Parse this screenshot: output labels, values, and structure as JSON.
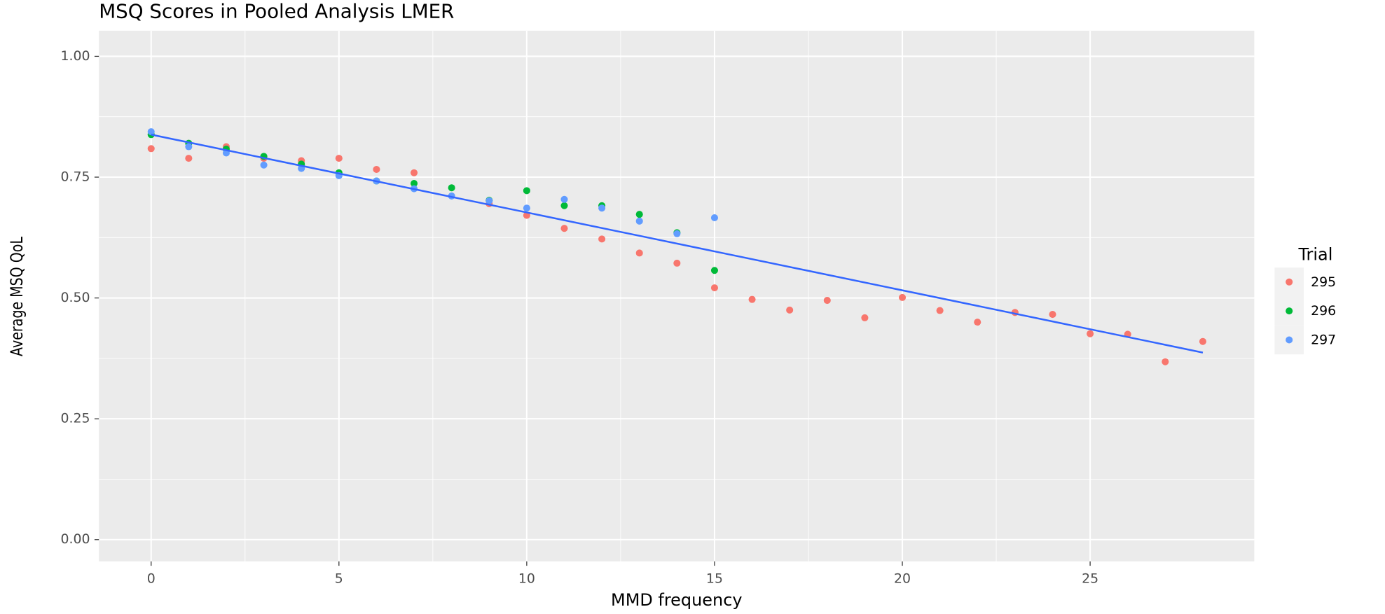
{
  "chart_data": {
    "type": "scatter",
    "title": "MSQ Scores in Pooled Analysis LMER",
    "x_label": "MMD frequency",
    "y_label": "Average MSQ QoL",
    "legend_title": "Trial",
    "legend": "right",
    "grid": true,
    "xlim": [
      -1.39,
      29.37
    ],
    "ylim": [
      -0.045,
      1.053
    ],
    "xticks": [
      0,
      5,
      10,
      15,
      20,
      25
    ],
    "yticks": [
      {
        "value": 0,
        "label": "0.00"
      },
      {
        "value": 0.25,
        "label": "0.25"
      },
      {
        "value": 0.5,
        "label": "0.50"
      },
      {
        "value": 0.75,
        "label": "0.75"
      },
      {
        "value": 1,
        "label": "1.00"
      }
    ],
    "series": [
      {
        "name": "295",
        "color": "#f8766d",
        "x": [
          0,
          1,
          2,
          3,
          4,
          5,
          6,
          7,
          9,
          10,
          11,
          12,
          13,
          14,
          15,
          16,
          17,
          18,
          19,
          20,
          21,
          22,
          23,
          24,
          25,
          26,
          27,
          28
        ],
        "values": [
          0.809,
          0.789,
          0.813,
          0.789,
          0.784,
          0.789,
          0.766,
          0.759,
          0.695,
          0.671,
          0.644,
          0.622,
          0.593,
          0.572,
          0.521,
          0.497,
          0.475,
          0.495,
          0.459,
          0.501,
          0.474,
          0.45,
          0.47,
          0.466,
          0.426,
          0.425,
          0.368,
          0.41
        ]
      },
      {
        "name": "296",
        "color": "#00ba38",
        "x": [
          0,
          1,
          2,
          3,
          4,
          5,
          6,
          7,
          8,
          9,
          10,
          11,
          12,
          13,
          14,
          15
        ],
        "values": [
          0.838,
          0.82,
          0.808,
          0.793,
          0.777,
          0.759,
          0.742,
          0.737,
          0.728,
          0.702,
          0.722,
          0.691,
          0.691,
          0.673,
          0.635,
          0.557
        ]
      },
      {
        "name": "297",
        "color": "#619cff",
        "x": [
          0,
          1,
          2,
          3,
          4,
          5,
          6,
          7,
          8,
          9,
          10,
          11,
          12,
          13,
          14,
          15
        ],
        "values": [
          0.844,
          0.813,
          0.8,
          0.775,
          0.768,
          0.753,
          0.742,
          0.726,
          0.711,
          0.701,
          0.686,
          0.704,
          0.686,
          0.659,
          0.633,
          0.666
        ]
      }
    ],
    "fit_line": {
      "color": "#3366ff",
      "x": [
        0,
        28
      ],
      "values": [
        0.838,
        0.387
      ]
    }
  }
}
